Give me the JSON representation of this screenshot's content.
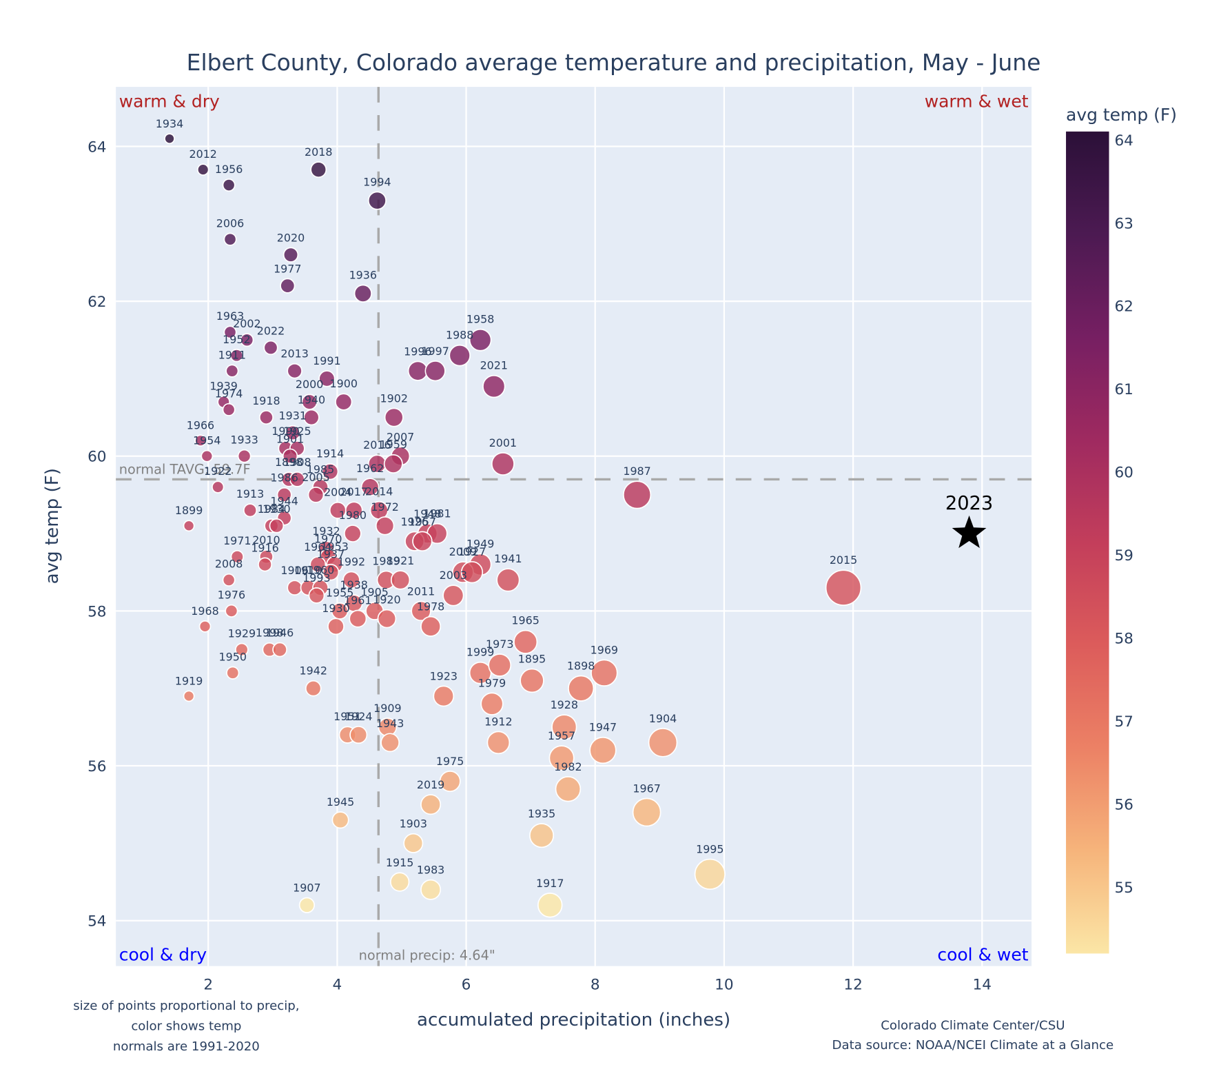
{
  "chart_data": {
    "type": "scatter",
    "title": "Elbert County, Colorado average temperature and precipitation, May - June",
    "xlabel": "accumulated precipitation (inches)",
    "ylabel": "avg temp (F)",
    "xlim": [
      0.55,
      14.75
    ],
    "ylim": [
      53.4,
      64.75
    ],
    "xticks": [
      2,
      4,
      6,
      8,
      10,
      12,
      14
    ],
    "yticks": [
      54,
      56,
      58,
      60,
      62,
      64
    ],
    "grid": true,
    "colorbar": {
      "title": "avg temp (F)",
      "range": [
        54.2,
        64.1
      ],
      "ticks": [
        55,
        56,
        57,
        58,
        59,
        60,
        61,
        62,
        63,
        64
      ],
      "colorscale": [
        "#fbe6a6",
        "#f6b47b",
        "#ec8165",
        "#dc5c5b",
        "#c33e5b",
        "#9f2a60",
        "#761f62",
        "#4c1a52",
        "#2b1038"
      ]
    },
    "normals": {
      "temp": 59.7,
      "temp_label": "normal TAVG: 59.7F",
      "precip": 4.64,
      "precip_label": "normal precip: 4.64\""
    },
    "quadrant_labels": {
      "top_left": "warm & dry",
      "top_right": "warm & wet",
      "bottom_left": "cool & dry",
      "bottom_right": "cool & wet"
    },
    "highlight": {
      "year": "2023",
      "precip": 13.8,
      "temp": 59.0,
      "marker": "star"
    },
    "points": [
      {
        "year": "1934",
        "precip": 1.4,
        "temp": 64.1
      },
      {
        "year": "2012",
        "precip": 1.92,
        "temp": 63.7
      },
      {
        "year": "1956",
        "precip": 2.32,
        "temp": 63.5
      },
      {
        "year": "2018",
        "precip": 3.71,
        "temp": 63.7
      },
      {
        "year": "1994",
        "precip": 4.62,
        "temp": 63.3
      },
      {
        "year": "2006",
        "precip": 2.34,
        "temp": 62.8
      },
      {
        "year": "2020",
        "precip": 3.28,
        "temp": 62.6
      },
      {
        "year": "1977",
        "precip": 3.23,
        "temp": 62.2
      },
      {
        "year": "1936",
        "precip": 4.4,
        "temp": 62.1
      },
      {
        "year": "1963",
        "precip": 2.34,
        "temp": 61.6
      },
      {
        "year": "2002",
        "precip": 2.6,
        "temp": 61.5
      },
      {
        "year": "1952",
        "precip": 2.44,
        "temp": 61.3
      },
      {
        "year": "2022",
        "precip": 2.97,
        "temp": 61.4
      },
      {
        "year": "1911",
        "precip": 2.37,
        "temp": 61.1
      },
      {
        "year": "2013",
        "precip": 3.34,
        "temp": 61.1
      },
      {
        "year": "1991",
        "precip": 3.84,
        "temp": 61.0
      },
      {
        "year": "1958",
        "precip": 6.22,
        "temp": 61.5
      },
      {
        "year": "1988",
        "precip": 5.9,
        "temp": 61.3
      },
      {
        "year": "1996",
        "precip": 5.25,
        "temp": 61.1
      },
      {
        "year": "1997",
        "precip": 5.52,
        "temp": 61.1
      },
      {
        "year": "2021",
        "precip": 6.43,
        "temp": 60.9
      },
      {
        "year": "1939",
        "precip": 2.24,
        "temp": 60.7
      },
      {
        "year": "1974",
        "precip": 2.32,
        "temp": 60.6
      },
      {
        "year": "2000",
        "precip": 3.57,
        "temp": 60.7
      },
      {
        "year": "1900",
        "precip": 4.1,
        "temp": 60.7
      },
      {
        "year": "1918",
        "precip": 2.9,
        "temp": 60.5
      },
      {
        "year": "1940",
        "precip": 3.6,
        "temp": 60.5
      },
      {
        "year": "1902",
        "precip": 4.88,
        "temp": 60.5
      },
      {
        "year": "1931",
        "precip": 3.31,
        "temp": 60.3
      },
      {
        "year": "1990",
        "precip": 3.2,
        "temp": 60.1
      },
      {
        "year": "1925",
        "precip": 3.38,
        "temp": 60.1
      },
      {
        "year": "1901",
        "precip": 3.27,
        "temp": 60.0
      },
      {
        "year": "1966",
        "precip": 1.88,
        "temp": 60.2
      },
      {
        "year": "1954",
        "precip": 1.98,
        "temp": 60.0
      },
      {
        "year": "1933",
        "precip": 2.56,
        "temp": 60.0
      },
      {
        "year": "2007",
        "precip": 4.98,
        "temp": 60.0
      },
      {
        "year": "2016",
        "precip": 4.62,
        "temp": 59.9
      },
      {
        "year": "1959",
        "precip": 4.87,
        "temp": 59.9
      },
      {
        "year": "2001",
        "precip": 6.57,
        "temp": 59.9
      },
      {
        "year": "1914",
        "precip": 3.89,
        "temp": 59.8
      },
      {
        "year": "1898",
        "precip": 3.25,
        "temp": 59.7
      },
      {
        "year": "1908",
        "precip": 3.38,
        "temp": 59.7
      },
      {
        "year": "1962",
        "precip": 4.51,
        "temp": 59.6
      },
      {
        "year": "1922",
        "precip": 2.15,
        "temp": 59.6
      },
      {
        "year": "1985",
        "precip": 3.74,
        "temp": 59.6
      },
      {
        "year": "1986",
        "precip": 3.18,
        "temp": 59.5
      },
      {
        "year": "2005",
        "precip": 3.67,
        "temp": 59.5
      },
      {
        "year": "1987",
        "precip": 8.65,
        "temp": 59.5
      },
      {
        "year": "2004",
        "precip": 4.01,
        "temp": 59.3
      },
      {
        "year": "2017",
        "precip": 4.26,
        "temp": 59.3
      },
      {
        "year": "2014",
        "precip": 4.65,
        "temp": 59.3
      },
      {
        "year": "1913",
        "precip": 2.65,
        "temp": 59.3
      },
      {
        "year": "1944",
        "precip": 3.18,
        "temp": 59.2
      },
      {
        "year": "1899",
        "precip": 1.7,
        "temp": 59.1
      },
      {
        "year": "1980",
        "precip": 4.24,
        "temp": 59.0
      },
      {
        "year": "1972",
        "precip": 4.74,
        "temp": 59.1
      },
      {
        "year": "1984",
        "precip": 2.98,
        "temp": 59.1
      },
      {
        "year": "1930",
        "precip": 3.06,
        "temp": 59.1
      },
      {
        "year": "1932",
        "precip": 3.83,
        "temp": 58.8
      },
      {
        "year": "1970",
        "precip": 3.86,
        "temp": 58.7
      },
      {
        "year": "1948",
        "precip": 5.4,
        "temp": 59.0
      },
      {
        "year": "1981",
        "precip": 5.55,
        "temp": 59.0
      },
      {
        "year": "1926",
        "precip": 5.2,
        "temp": 58.9
      },
      {
        "year": "1957",
        "precip": 5.32,
        "temp": 58.9
      },
      {
        "year": "1971",
        "precip": 2.45,
        "temp": 58.7
      },
      {
        "year": "2010",
        "precip": 2.9,
        "temp": 58.7
      },
      {
        "year": "1916",
        "precip": 2.88,
        "temp": 58.6
      },
      {
        "year": "1964",
        "precip": 3.7,
        "temp": 58.6
      },
      {
        "year": "1953",
        "precip": 3.96,
        "temp": 58.6
      },
      {
        "year": "1937",
        "precip": 3.9,
        "temp": 58.5
      },
      {
        "year": "1949",
        "precip": 6.22,
        "temp": 58.6
      },
      {
        "year": "2009",
        "precip": 5.95,
        "temp": 58.5
      },
      {
        "year": "1927",
        "precip": 6.09,
        "temp": 58.5
      },
      {
        "year": "1941",
        "precip": 6.65,
        "temp": 58.4
      },
      {
        "year": "2015",
        "precip": 11.85,
        "temp": 58.3
      },
      {
        "year": "2008",
        "precip": 2.32,
        "temp": 58.4
      },
      {
        "year": "1992",
        "precip": 4.22,
        "temp": 58.4
      },
      {
        "year": "1989",
        "precip": 4.76,
        "temp": 58.4
      },
      {
        "year": "1921",
        "precip": 4.98,
        "temp": 58.4
      },
      {
        "year": "1906",
        "precip": 3.34,
        "temp": 58.3
      },
      {
        "year": "1910",
        "precip": 3.55,
        "temp": 58.3
      },
      {
        "year": "1960",
        "precip": 3.74,
        "temp": 58.3
      },
      {
        "year": "1993",
        "precip": 3.68,
        "temp": 58.2
      },
      {
        "year": "1938",
        "precip": 4.26,
        "temp": 58.1
      },
      {
        "year": "2003",
        "precip": 5.8,
        "temp": 58.2
      },
      {
        "year": "2011",
        "precip": 5.3,
        "temp": 58.0
      },
      {
        "year": "1976",
        "precip": 2.36,
        "temp": 58.0
      },
      {
        "year": "1955",
        "precip": 4.04,
        "temp": 58.0
      },
      {
        "year": "1905",
        "precip": 4.58,
        "temp": 58.0
      },
      {
        "year": "1961",
        "precip": 4.32,
        "temp": 57.9
      },
      {
        "year": "1920",
        "precip": 4.77,
        "temp": 57.9
      },
      {
        "year": "1978",
        "precip": 5.45,
        "temp": 57.8
      },
      {
        "year": "1930b",
        "label": "1930",
        "precip": 3.98,
        "temp": 57.8
      },
      {
        "year": "1968",
        "precip": 1.95,
        "temp": 57.8
      },
      {
        "year": "1965",
        "precip": 6.92,
        "temp": 57.6
      },
      {
        "year": "1929",
        "precip": 2.52,
        "temp": 57.5
      },
      {
        "year": "1998",
        "precip": 2.95,
        "temp": 57.5
      },
      {
        "year": "1946",
        "precip": 3.11,
        "temp": 57.5
      },
      {
        "year": "1950",
        "precip": 2.38,
        "temp": 57.2
      },
      {
        "year": "1999",
        "precip": 6.22,
        "temp": 57.2
      },
      {
        "year": "1973",
        "precip": 6.52,
        "temp": 57.3
      },
      {
        "year": "1895",
        "precip": 7.02,
        "temp": 57.1
      },
      {
        "year": "1898b",
        "label": "1898",
        "precip": 7.78,
        "temp": 57.0
      },
      {
        "year": "1969",
        "precip": 8.14,
        "temp": 57.2
      },
      {
        "year": "1942",
        "precip": 3.63,
        "temp": 57.0
      },
      {
        "year": "1919",
        "precip": 1.7,
        "temp": 56.9
      },
      {
        "year": "1923",
        "precip": 5.65,
        "temp": 56.9
      },
      {
        "year": "1979",
        "precip": 6.4,
        "temp": 56.8
      },
      {
        "year": "1928",
        "precip": 7.52,
        "temp": 56.5
      },
      {
        "year": "1909",
        "precip": 4.78,
        "temp": 56.5
      },
      {
        "year": "1951",
        "precip": 4.16,
        "temp": 56.4
      },
      {
        "year": "1924",
        "precip": 4.33,
        "temp": 56.4
      },
      {
        "year": "1943",
        "precip": 4.82,
        "temp": 56.3
      },
      {
        "year": "1912",
        "precip": 6.5,
        "temp": 56.3
      },
      {
        "year": "1957b",
        "label": "1957",
        "precip": 7.48,
        "temp": 56.1
      },
      {
        "year": "1947",
        "precip": 8.12,
        "temp": 56.2
      },
      {
        "year": "1904",
        "precip": 9.05,
        "temp": 56.3
      },
      {
        "year": "1975",
        "precip": 5.75,
        "temp": 55.8
      },
      {
        "year": "1982",
        "precip": 7.58,
        "temp": 55.7
      },
      {
        "year": "2019",
        "precip": 5.45,
        "temp": 55.5
      },
      {
        "year": "1967",
        "precip": 8.8,
        "temp": 55.4
      },
      {
        "year": "1945",
        "precip": 4.05,
        "temp": 55.3
      },
      {
        "year": "1935",
        "precip": 7.17,
        "temp": 55.1
      },
      {
        "year": "1903",
        "precip": 5.18,
        "temp": 55.0
      },
      {
        "year": "1995",
        "precip": 9.78,
        "temp": 54.6
      },
      {
        "year": "1915",
        "precip": 4.97,
        "temp": 54.5
      },
      {
        "year": "1983",
        "precip": 5.45,
        "temp": 54.4
      },
      {
        "year": "1907",
        "precip": 3.53,
        "temp": 54.2
      },
      {
        "year": "1917",
        "precip": 7.3,
        "temp": 54.2
      }
    ],
    "footnote_left": [
      "size of points proportional to precip,",
      "color shows temp",
      "normals are 1991-2020"
    ],
    "footnote_right": [
      "Colorado Climate Center/CSU",
      "Data source: NOAA/NCEI Climate at a Glance"
    ]
  }
}
